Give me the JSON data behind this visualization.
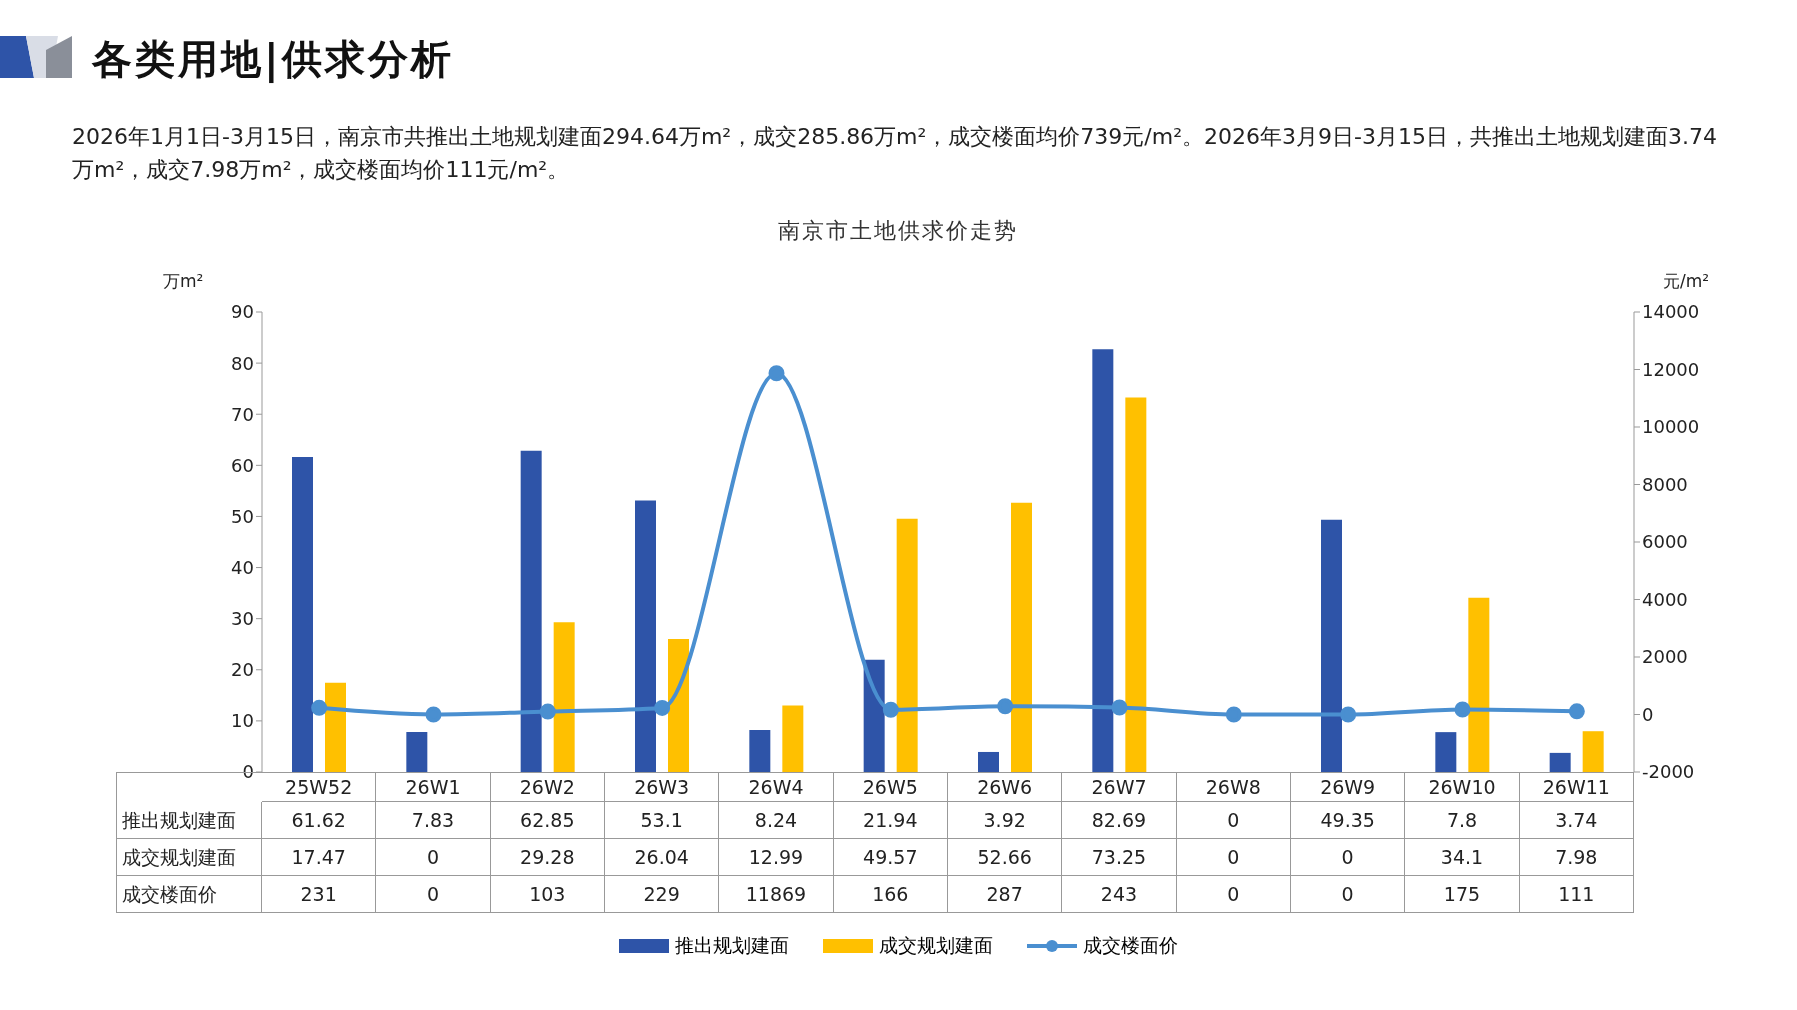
{
  "chart_data": {
    "type": "bar",
    "title": "南京市土地供求价走势",
    "annotations": [
      "各类用地|供求分析",
      "2026年1月1日-3月15日，南京市共推出土地规划建面294.64万m²，成交285.86万m²，成交楼面均价739元/m²。2026年3月9日-3月15日，共推出土地规划建面3.74万m²，成交7.98万m²，成交楼面均价111元/m²。"
    ],
    "ylabel": "万m²",
    "y2label": "元/m²",
    "categories": [
      "25W52",
      "26W1",
      "26W2",
      "26W3",
      "26W4",
      "26W5",
      "26W6",
      "26W7",
      "26W8",
      "26W9",
      "26W10",
      "26W11"
    ],
    "series": [
      {
        "name": "推出规划建面",
        "color": "#2e54a8",
        "values": [
          61.62,
          7.83,
          62.85,
          53.1,
          8.24,
          21.94,
          3.92,
          82.69,
          0,
          49.35,
          7.8,
          3.74
        ]
      },
      {
        "name": "成交规划建面",
        "color": "#ffc000",
        "values": [
          17.47,
          0,
          29.28,
          26.04,
          12.99,
          49.57,
          52.66,
          73.25,
          0,
          0,
          34.1,
          7.98
        ]
      },
      {
        "name": "成交楼面价",
        "type": "line",
        "axis": "y2",
        "color": "#4a8fd0",
        "values": [
          231,
          0,
          103,
          229,
          11869,
          166,
          287,
          243,
          0,
          0,
          175,
          111
        ]
      }
    ],
    "ylim": [
      0,
      90
    ],
    "yticks": [
      0,
      10,
      20,
      30,
      40,
      50,
      60,
      70,
      80,
      90
    ],
    "y2lim": [
      -2000,
      14000
    ],
    "y2ticks": [
      -2000,
      0,
      2000,
      4000,
      6000,
      8000,
      10000,
      12000,
      14000
    ],
    "data_labels": true,
    "legend": "bottom",
    "marker": "circle"
  }
}
